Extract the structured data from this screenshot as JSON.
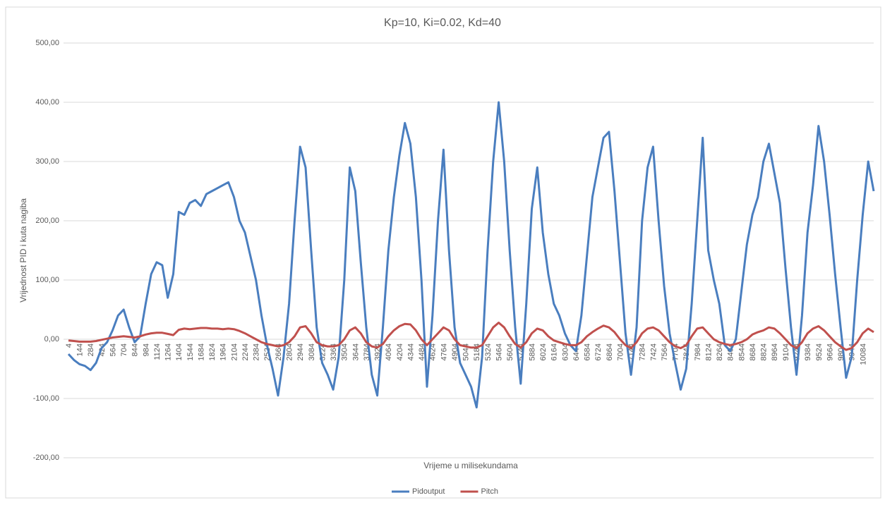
{
  "chart_data": {
    "type": "line",
    "title": "Kp=10, Ki=0.02, Kd=40",
    "x_label": "Vrijeme u milisekundama",
    "y_label": "Vrijednost PID i kuta nagiba",
    "categories": [
      "4",
      null,
      "144",
      null,
      "284",
      null,
      "424",
      null,
      "564",
      null,
      "704",
      null,
      "844",
      null,
      "984",
      null,
      "1124",
      null,
      "1264",
      null,
      "1404",
      null,
      "1544",
      null,
      "1684",
      null,
      "1824",
      null,
      "1964",
      null,
      "2104",
      null,
      "2244",
      null,
      "2384",
      null,
      "2524",
      null,
      "2664",
      null,
      "2804",
      null,
      "2944",
      null,
      "3084",
      null,
      "3224",
      null,
      "3364",
      null,
      "3504",
      null,
      "3644",
      null,
      "3784",
      null,
      "3924",
      null,
      "4064",
      null,
      "4204",
      null,
      "4344",
      null,
      "4484",
      null,
      "4624",
      null,
      "4764",
      null,
      "4904",
      null,
      "5044",
      null,
      "5184",
      null,
      "5324",
      null,
      "5464",
      null,
      "5604",
      null,
      "5744",
      null,
      "5884",
      null,
      "6024",
      null,
      "6164",
      null,
      "6304",
      null,
      "6444",
      null,
      "6584",
      null,
      "6724",
      null,
      "6864",
      null,
      "7004",
      null,
      "7144",
      null,
      "7284",
      null,
      "7424",
      null,
      "7564",
      null,
      "7704",
      null,
      "7844",
      null,
      "7984",
      null,
      "8124",
      null,
      "8264",
      null,
      "8404",
      null,
      "8544",
      null,
      "8684",
      null,
      "8824",
      null,
      "8964",
      null,
      "9104",
      null,
      "9244",
      null,
      "9384",
      null,
      "9524",
      null,
      "9664",
      null,
      "9804",
      null,
      "9944",
      null,
      "10084",
      null,
      null
    ],
    "series": [
      {
        "name": "Pidoutput",
        "color": "#4a7ebf",
        "values": [
          -25,
          -35,
          -42,
          -45,
          -52,
          -40,
          -15,
          -5,
          15,
          40,
          50,
          20,
          -5,
          5,
          60,
          110,
          130,
          125,
          70,
          110,
          215,
          210,
          230,
          235,
          225,
          245,
          250,
          255,
          260,
          265,
          240,
          200,
          180,
          140,
          100,
          40,
          -10,
          -50,
          -95,
          -30,
          60,
          200,
          325,
          290,
          150,
          20,
          -40,
          -60,
          -85,
          -30,
          100,
          290,
          250,
          130,
          20,
          -60,
          -95,
          20,
          150,
          240,
          310,
          365,
          330,
          240,
          100,
          -80,
          40,
          200,
          320,
          150,
          20,
          -40,
          -60,
          -80,
          -115,
          -30,
          150,
          300,
          400,
          300,
          150,
          20,
          -75,
          60,
          220,
          290,
          180,
          110,
          60,
          40,
          10,
          -10,
          -20,
          40,
          140,
          240,
          290,
          340,
          350,
          250,
          130,
          10,
          -60,
          20,
          200,
          290,
          325,
          200,
          90,
          10,
          -40,
          -85,
          -50,
          60,
          200,
          340,
          150,
          100,
          60,
          -10,
          -20,
          0,
          80,
          160,
          210,
          240,
          300,
          330,
          280,
          230,
          120,
          20,
          -60,
          40,
          180,
          260,
          360,
          300,
          210,
          110,
          20,
          -65,
          -30,
          100,
          210,
          300,
          250
        ]
      },
      {
        "name": "Pitch",
        "color": "#c0504d",
        "values": [
          -2,
          -3,
          -4,
          -4,
          -4,
          -3,
          -1,
          1,
          3,
          4,
          5,
          4,
          3,
          5,
          8,
          10,
          11,
          11,
          9,
          7,
          16,
          18,
          17,
          18,
          19,
          19,
          18,
          18,
          17,
          18,
          17,
          14,
          10,
          5,
          0,
          -5,
          -8,
          -10,
          -12,
          -10,
          -5,
          5,
          20,
          22,
          10,
          -5,
          -10,
          -12,
          -12,
          -10,
          0,
          15,
          20,
          10,
          -5,
          -12,
          -14,
          -8,
          5,
          15,
          22,
          26,
          25,
          15,
          0,
          -10,
          0,
          10,
          20,
          15,
          0,
          -10,
          -12,
          -14,
          -14,
          -10,
          5,
          20,
          28,
          20,
          5,
          -8,
          -14,
          -5,
          10,
          18,
          15,
          5,
          -2,
          -5,
          -8,
          -10,
          -10,
          -5,
          5,
          12,
          18,
          23,
          20,
          12,
          0,
          -10,
          -15,
          -5,
          10,
          18,
          20,
          15,
          5,
          -5,
          -12,
          -15,
          -10,
          5,
          18,
          20,
          10,
          0,
          -5,
          -8,
          -10,
          -8,
          -5,
          0,
          8,
          12,
          15,
          20,
          18,
          10,
          0,
          -10,
          -15,
          -5,
          10,
          18,
          22,
          15,
          5,
          -5,
          -12,
          -18,
          -15,
          -5,
          10,
          18,
          12
        ]
      }
    ],
    "ylim": [
      -200,
      500
    ],
    "yticks": [
      {
        "value": -200,
        "label": "-200,00"
      },
      {
        "value": -100,
        "label": "-100,00"
      },
      {
        "value": 0,
        "label": "0,00"
      },
      {
        "value": 100,
        "label": "100,00"
      },
      {
        "value": 200,
        "label": "200,00"
      },
      {
        "value": 300,
        "label": "300,00"
      },
      {
        "value": 400,
        "label": "400,00"
      },
      {
        "value": 500,
        "label": "500,00"
      }
    ],
    "grid": true,
    "legend": "bottom"
  }
}
